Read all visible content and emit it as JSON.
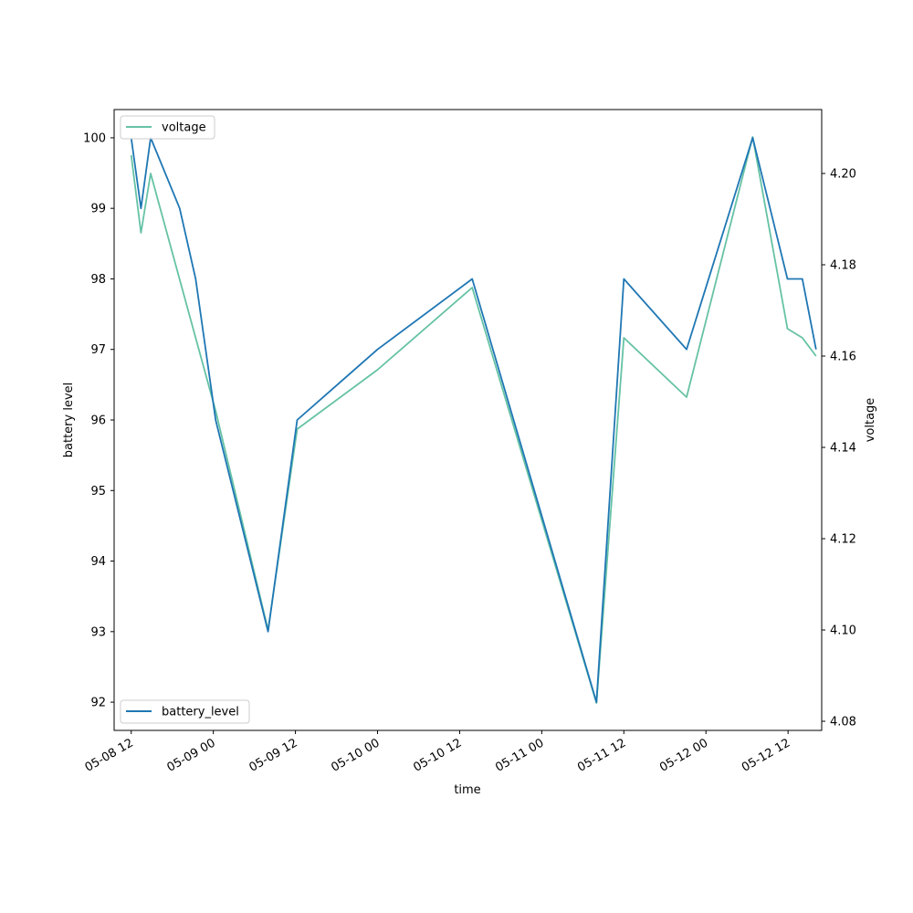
{
  "chart_data": {
    "type": "line",
    "title": "",
    "xlabel": "time",
    "ylabel_left": "battery level",
    "ylabel_right": "voltage",
    "x_ticks": [
      "05-08 12",
      "05-09 00",
      "05-09 12",
      "05-10 00",
      "05-10 12",
      "05-11 00",
      "05-11 12",
      "05-12 00",
      "05-12 12"
    ],
    "y_left_ticks": [
      "92",
      "93",
      "94",
      "95",
      "96",
      "97",
      "98",
      "99",
      "100"
    ],
    "y_right_ticks": [
      "4.08",
      "4.10",
      "4.12",
      "4.14",
      "4.16",
      "4.18",
      "4.20"
    ],
    "x_range": [
      "2024-05-08 09:30",
      "2024-05-12 16:55"
    ],
    "y_left_range": [
      91.6,
      100.4
    ],
    "y_right_range": [
      4.078,
      4.214
    ],
    "grid": false,
    "series": [
      {
        "name": "battery_level",
        "axis": "left",
        "color": "#1f77b4",
        "legend_position": "lower-left",
        "points": [
          {
            "x": "2024-05-08 12:00",
            "y": 100
          },
          {
            "x": "2024-05-08 13:25",
            "y": 99
          },
          {
            "x": "2024-05-08 14:50",
            "y": 100
          },
          {
            "x": "2024-05-08 19:05",
            "y": 99
          },
          {
            "x": "2024-05-08 21:25",
            "y": 98
          },
          {
            "x": "2024-05-09 00:20",
            "y": 96
          },
          {
            "x": "2024-05-09 08:00",
            "y": 93
          },
          {
            "x": "2024-05-09 12:15",
            "y": 96
          },
          {
            "x": "2024-05-10 00:00",
            "y": 97
          },
          {
            "x": "2024-05-10 13:50",
            "y": 98
          },
          {
            "x": "2024-05-11 08:00",
            "y": 92
          },
          {
            "x": "2024-05-11 12:00",
            "y": 98
          },
          {
            "x": "2024-05-11 21:10",
            "y": 97
          },
          {
            "x": "2024-05-12 06:50",
            "y": 100
          },
          {
            "x": "2024-05-12 11:55",
            "y": 98
          },
          {
            "x": "2024-05-12 14:05",
            "y": 98
          },
          {
            "x": "2024-05-12 16:05",
            "y": 97
          }
        ]
      },
      {
        "name": "voltage",
        "axis": "right",
        "color": "#66c2a5",
        "legend_position": "upper-left",
        "points": [
          {
            "x": "2024-05-08 12:00",
            "y": 4.204
          },
          {
            "x": "2024-05-08 13:25",
            "y": 4.187
          },
          {
            "x": "2024-05-08 14:50",
            "y": 4.2
          },
          {
            "x": "2024-05-09 00:20",
            "y": 4.148
          },
          {
            "x": "2024-05-09 08:00",
            "y": 4.1
          },
          {
            "x": "2024-05-09 12:15",
            "y": 4.144
          },
          {
            "x": "2024-05-10 00:00",
            "y": 4.157
          },
          {
            "x": "2024-05-10 13:50",
            "y": 4.175
          },
          {
            "x": "2024-05-11 08:00",
            "y": 4.084
          },
          {
            "x": "2024-05-11 12:00",
            "y": 4.164
          },
          {
            "x": "2024-05-11 21:10",
            "y": 4.151
          },
          {
            "x": "2024-05-12 06:50",
            "y": 4.208
          },
          {
            "x": "2024-05-12 11:55",
            "y": 4.166
          },
          {
            "x": "2024-05-12 14:05",
            "y": 4.164
          },
          {
            "x": "2024-05-12 16:05",
            "y": 4.16
          }
        ]
      }
    ]
  }
}
